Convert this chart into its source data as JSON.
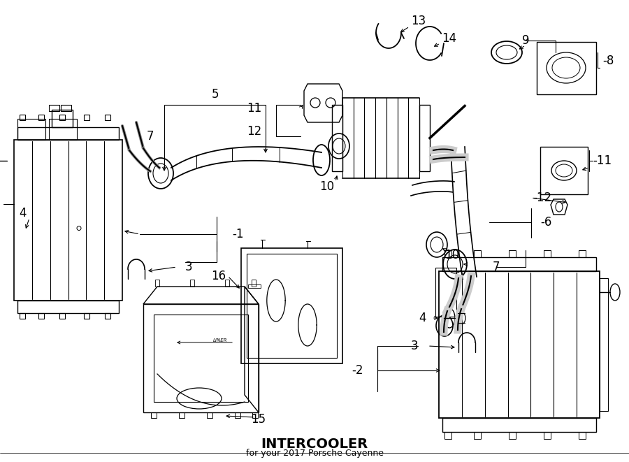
{
  "title": "INTERCOOLER",
  "subtitle": "for your 2017 Porsche Cayenne",
  "bg": "#ffffff",
  "lc": "#000000",
  "fig_w": 9.0,
  "fig_h": 6.61,
  "dpi": 100
}
